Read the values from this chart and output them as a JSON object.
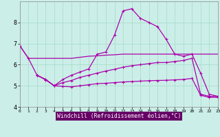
{
  "xlabel": "Windchill (Refroidissement éolien,°C)",
  "background_color": "#cceee8",
  "grid_color": "#aaddcc",
  "line_color": "#aa00aa",
  "xlim": [
    0,
    23
  ],
  "ylim": [
    4.0,
    9.0
  ],
  "yticks": [
    4,
    5,
    6,
    7,
    8
  ],
  "xticks": [
    0,
    1,
    2,
    3,
    4,
    5,
    6,
    7,
    8,
    9,
    10,
    11,
    12,
    13,
    14,
    15,
    16,
    17,
    18,
    19,
    20,
    21,
    22,
    23
  ],
  "series": [
    {
      "x": [
        0,
        1,
        2,
        3,
        4,
        5,
        6,
        7,
        8,
        9,
        10,
        11,
        12,
        13,
        14,
        15,
        16,
        17,
        18,
        19,
        20,
        21,
        22,
        23
      ],
      "y": [
        6.9,
        6.3,
        6.3,
        6.3,
        6.3,
        6.3,
        6.3,
        6.35,
        6.4,
        6.42,
        6.45,
        6.47,
        6.5,
        6.5,
        6.5,
        6.5,
        6.5,
        6.5,
        6.5,
        6.5,
        6.5,
        6.5,
        6.5,
        6.5
      ],
      "marker": false
    },
    {
      "x": [
        0,
        1,
        2,
        3,
        4,
        5,
        6,
        7,
        8,
        9,
        10,
        11,
        12,
        13,
        14,
        15,
        16,
        17,
        18,
        19,
        20,
        21,
        22,
        23
      ],
      "y": [
        6.9,
        6.3,
        5.5,
        5.3,
        5.0,
        5.3,
        5.5,
        5.65,
        5.8,
        6.5,
        6.6,
        7.4,
        8.55,
        8.65,
        8.2,
        8.0,
        7.8,
        7.2,
        6.5,
        6.4,
        6.5,
        5.6,
        4.6,
        4.5
      ],
      "marker": true
    },
    {
      "x": [
        2,
        3,
        4,
        5,
        6,
        7,
        8,
        9,
        10,
        11,
        12,
        13,
        14,
        15,
        16,
        17,
        18,
        19,
        20,
        21,
        22,
        23
      ],
      "y": [
        5.5,
        5.3,
        5.0,
        5.15,
        5.25,
        5.4,
        5.5,
        5.6,
        5.7,
        5.78,
        5.88,
        5.95,
        6.0,
        6.05,
        6.1,
        6.1,
        6.15,
        6.2,
        6.3,
        4.6,
        4.5,
        4.5
      ],
      "marker": true
    },
    {
      "x": [
        2,
        3,
        4,
        5,
        6,
        7,
        8,
        9,
        10,
        11,
        12,
        13,
        14,
        15,
        16,
        17,
        18,
        19,
        20,
        21,
        22,
        23
      ],
      "y": [
        5.5,
        5.28,
        5.0,
        4.97,
        4.95,
        5.0,
        5.05,
        5.1,
        5.12,
        5.15,
        5.18,
        5.2,
        5.22,
        5.24,
        5.25,
        5.26,
        5.28,
        5.3,
        5.35,
        4.55,
        4.45,
        4.45
      ],
      "marker": true
    }
  ]
}
